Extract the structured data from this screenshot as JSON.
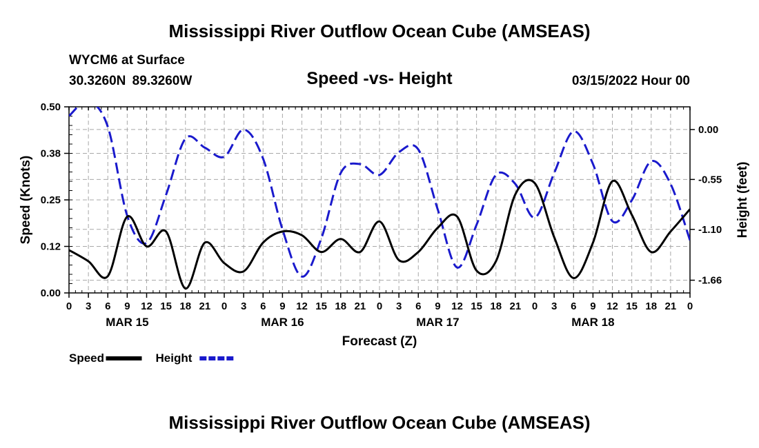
{
  "header": {
    "title": "Mississippi River Outflow Ocean Cube (AMSEAS)",
    "station": "WYCM6 at Surface",
    "coords": "30.3260N  89.3260W",
    "subtitle": "Speed -vs- Height",
    "datetime": "03/15/2022 Hour 00"
  },
  "footer": {
    "title": "Mississippi River Outflow Ocean Cube (AMSEAS)"
  },
  "chart_data": {
    "type": "line",
    "title": "Speed -vs- Height",
    "xlabel": "Forecast (Z)",
    "ylabel": "Speed (Knots)",
    "y2label": "Height (feet)",
    "x_range": [
      0,
      96
    ],
    "x_tick_labels": [
      "0",
      "3",
      "6",
      "9",
      "12",
      "15",
      "18",
      "21",
      "0",
      "3",
      "6",
      "9",
      "12",
      "15",
      "18",
      "21",
      "0",
      "3",
      "6",
      "9",
      "12",
      "15",
      "18",
      "21",
      "0",
      "3",
      "6",
      "9",
      "12",
      "15",
      "18",
      "21",
      "0"
    ],
    "day_labels": [
      {
        "label": "MAR 15",
        "hour": 9
      },
      {
        "label": "MAR 16",
        "hour": 33
      },
      {
        "label": "MAR 17",
        "hour": 57
      },
      {
        "label": "MAR 18",
        "hour": 81
      }
    ],
    "ylim": [
      0,
      0.5
    ],
    "y_ticks": [
      0.0,
      0.125,
      0.25,
      0.375,
      0.5
    ],
    "y_tick_labels": [
      "0.00",
      "0.12",
      "0.25",
      "0.38",
      "0.50"
    ],
    "y2_ticks": [
      0.0,
      -0.55,
      -1.1,
      -1.66
    ],
    "y2_tick_labels": [
      "0.00",
      "-0.55",
      "-1.10",
      "-1.66"
    ],
    "y2lim": [
      -1.8,
      0.25
    ],
    "grid": true,
    "legend": "bottom-left",
    "series": [
      {
        "name": "Speed",
        "axis": "left",
        "color": "#000000",
        "style": "solid",
        "points": [
          [
            0,
            0.115
          ],
          [
            3,
            0.085
          ],
          [
            6,
            0.045
          ],
          [
            9,
            0.205
          ],
          [
            12,
            0.125
          ],
          [
            15,
            0.165
          ],
          [
            18,
            0.012
          ],
          [
            21,
            0.135
          ],
          [
            24,
            0.08
          ],
          [
            27,
            0.058
          ],
          [
            30,
            0.135
          ],
          [
            33,
            0.165
          ],
          [
            36,
            0.155
          ],
          [
            39,
            0.11
          ],
          [
            42,
            0.145
          ],
          [
            45,
            0.11
          ],
          [
            48,
            0.192
          ],
          [
            51,
            0.088
          ],
          [
            54,
            0.11
          ],
          [
            57,
            0.175
          ],
          [
            60,
            0.205
          ],
          [
            63,
            0.06
          ],
          [
            66,
            0.085
          ],
          [
            69,
            0.265
          ],
          [
            72,
            0.295
          ],
          [
            75,
            0.15
          ],
          [
            78,
            0.04
          ],
          [
            81,
            0.135
          ],
          [
            84,
            0.3
          ],
          [
            87,
            0.21
          ],
          [
            90,
            0.11
          ],
          [
            93,
            0.165
          ],
          [
            96,
            0.225
          ]
        ]
      },
      {
        "name": "Height",
        "axis": "right",
        "color": "#1a1acc",
        "style": "dashed",
        "points": [
          [
            0,
            0.15
          ],
          [
            3,
            0.31
          ],
          [
            6,
            0.03
          ],
          [
            9,
            -0.95
          ],
          [
            12,
            -1.25
          ],
          [
            15,
            -0.72
          ],
          [
            18,
            -0.1
          ],
          [
            21,
            -0.2
          ],
          [
            24,
            -0.3
          ],
          [
            27,
            0.0
          ],
          [
            30,
            -0.32
          ],
          [
            33,
            -1.1
          ],
          [
            36,
            -1.62
          ],
          [
            39,
            -1.2
          ],
          [
            42,
            -0.48
          ],
          [
            45,
            -0.38
          ],
          [
            48,
            -0.5
          ],
          [
            51,
            -0.25
          ],
          [
            54,
            -0.22
          ],
          [
            57,
            -0.88
          ],
          [
            60,
            -1.52
          ],
          [
            63,
            -1.05
          ],
          [
            66,
            -0.5
          ],
          [
            69,
            -0.6
          ],
          [
            72,
            -0.97
          ],
          [
            75,
            -0.48
          ],
          [
            78,
            -0.02
          ],
          [
            81,
            -0.38
          ],
          [
            84,
            -1.01
          ],
          [
            87,
            -0.78
          ],
          [
            90,
            -0.35
          ],
          [
            93,
            -0.6
          ],
          [
            96,
            -1.22
          ]
        ]
      }
    ]
  }
}
